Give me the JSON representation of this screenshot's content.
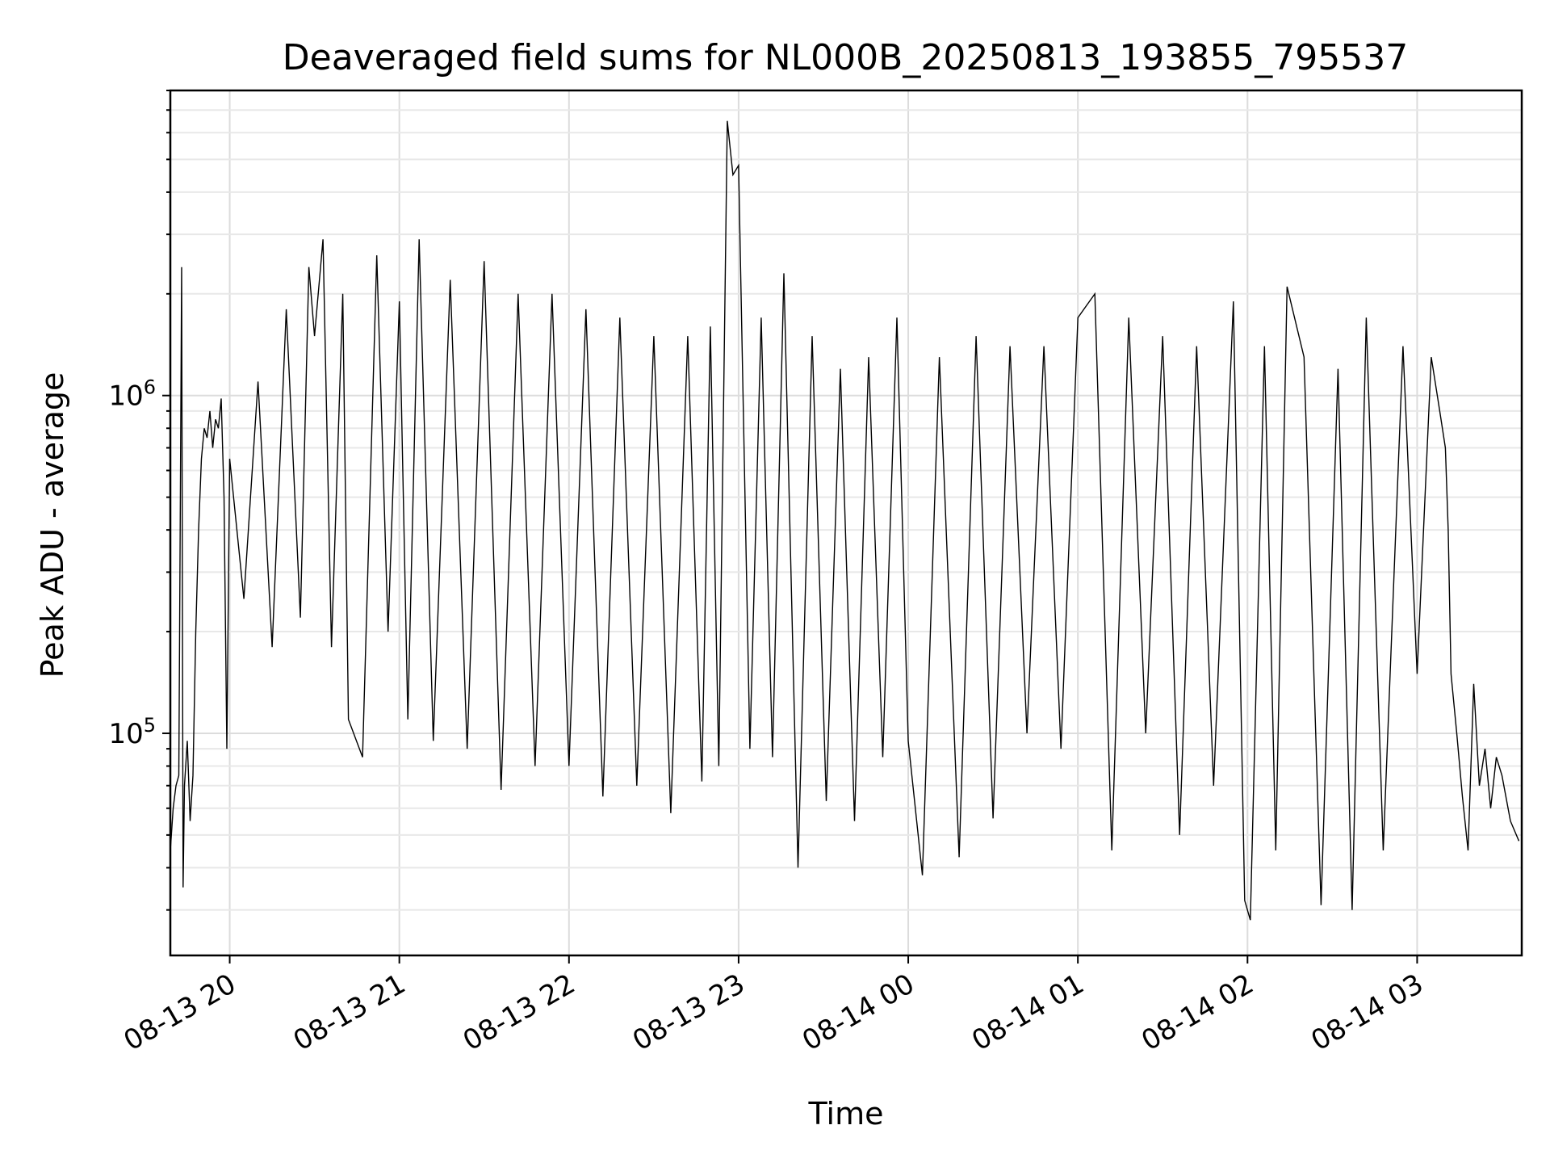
{
  "chart_data": {
    "type": "line",
    "title": "Deaveraged field sums for NL000B_20250813_193855_795537",
    "xlabel": "Time",
    "ylabel": "Peak ADU - average",
    "yscale": "log",
    "ylim": [
      22000,
      8000000
    ],
    "xlim": [
      "2025-08-13 19:39",
      "2025-08-14 03:37"
    ],
    "x_ticks": [
      "2025-08-13 20:00",
      "2025-08-13 21:00",
      "2025-08-13 22:00",
      "2025-08-13 23:00",
      "2025-08-14 00:00",
      "2025-08-14 01:00",
      "2025-08-14 02:00",
      "2025-08-14 03:00"
    ],
    "x_tick_labels": [
      "08-13 20",
      "08-13 21",
      "08-13 22",
      "08-13 23",
      "08-14 00",
      "08-14 01",
      "08-14 02",
      "08-14 03"
    ],
    "y_ticks": [
      {
        "base": "10",
        "exp": "5",
        "value": 100000
      },
      {
        "base": "10",
        "exp": "6",
        "value": 1000000
      }
    ],
    "grid": true,
    "line_color": "#000000",
    "series": [
      {
        "name": "",
        "points": [
          [
            "2025-08-13 19:39",
            45000
          ],
          [
            "2025-08-13 19:40",
            60000
          ],
          [
            "2025-08-13 19:41",
            70000
          ],
          [
            "2025-08-13 19:42",
            75000
          ],
          [
            "2025-08-13 19:43",
            2400000
          ],
          [
            "2025-08-13 19:43:30",
            35000
          ],
          [
            "2025-08-13 19:44",
            70000
          ],
          [
            "2025-08-13 19:45",
            95000
          ],
          [
            "2025-08-13 19:46",
            55000
          ],
          [
            "2025-08-13 19:47",
            75000
          ],
          [
            "2025-08-13 19:48",
            200000
          ],
          [
            "2025-08-13 19:49",
            400000
          ],
          [
            "2025-08-13 19:50",
            650000
          ],
          [
            "2025-08-13 19:51",
            800000
          ],
          [
            "2025-08-13 19:52",
            750000
          ],
          [
            "2025-08-13 19:53",
            900000
          ],
          [
            "2025-08-13 19:54",
            700000
          ],
          [
            "2025-08-13 19:55",
            850000
          ],
          [
            "2025-08-13 19:56",
            800000
          ],
          [
            "2025-08-13 19:57",
            980000
          ],
          [
            "2025-08-13 19:58",
            500000
          ],
          [
            "2025-08-13 19:59",
            90000
          ],
          [
            "2025-08-13 20:00",
            650000
          ],
          [
            "2025-08-13 20:05",
            250000
          ],
          [
            "2025-08-13 20:10",
            1100000
          ],
          [
            "2025-08-13 20:15",
            180000
          ],
          [
            "2025-08-13 20:20",
            1800000
          ],
          [
            "2025-08-13 20:25",
            220000
          ],
          [
            "2025-08-13 20:28",
            2400000
          ],
          [
            "2025-08-13 20:30",
            1500000
          ],
          [
            "2025-08-13 20:33",
            2900000
          ],
          [
            "2025-08-13 20:36",
            180000
          ],
          [
            "2025-08-13 20:40",
            2000000
          ],
          [
            "2025-08-13 20:42",
            110000
          ],
          [
            "2025-08-13 20:47",
            85000
          ],
          [
            "2025-08-13 20:52",
            2600000
          ],
          [
            "2025-08-13 20:56",
            200000
          ],
          [
            "2025-08-13 21:00",
            1900000
          ],
          [
            "2025-08-13 21:03",
            110000
          ],
          [
            "2025-08-13 21:07",
            2900000
          ],
          [
            "2025-08-13 21:12",
            95000
          ],
          [
            "2025-08-13 21:18",
            2200000
          ],
          [
            "2025-08-13 21:24",
            90000
          ],
          [
            "2025-08-13 21:30",
            2500000
          ],
          [
            "2025-08-13 21:36",
            68000
          ],
          [
            "2025-08-13 21:42",
            2000000
          ],
          [
            "2025-08-13 21:48",
            80000
          ],
          [
            "2025-08-13 21:54",
            2000000
          ],
          [
            "2025-08-13 22:00",
            80000
          ],
          [
            "2025-08-13 22:06",
            1800000
          ],
          [
            "2025-08-13 22:12",
            65000
          ],
          [
            "2025-08-13 22:18",
            1700000
          ],
          [
            "2025-08-13 22:24",
            70000
          ],
          [
            "2025-08-13 22:30",
            1500000
          ],
          [
            "2025-08-13 22:36",
            58000
          ],
          [
            "2025-08-13 22:42",
            1500000
          ],
          [
            "2025-08-13 22:47",
            72000
          ],
          [
            "2025-08-13 22:50",
            1600000
          ],
          [
            "2025-08-13 22:53",
            80000
          ],
          [
            "2025-08-13 22:56",
            6500000
          ],
          [
            "2025-08-13 22:58",
            4500000
          ],
          [
            "2025-08-13 23:00",
            4800000
          ],
          [
            "2025-08-13 23:04",
            90000
          ],
          [
            "2025-08-13 23:08",
            1700000
          ],
          [
            "2025-08-13 23:12",
            85000
          ],
          [
            "2025-08-13 23:16",
            2300000
          ],
          [
            "2025-08-13 23:21",
            40000
          ],
          [
            "2025-08-13 23:26",
            1500000
          ],
          [
            "2025-08-13 23:31",
            63000
          ],
          [
            "2025-08-13 23:36",
            1200000
          ],
          [
            "2025-08-13 23:41",
            55000
          ],
          [
            "2025-08-13 23:46",
            1300000
          ],
          [
            "2025-08-13 23:51",
            85000
          ],
          [
            "2025-08-13 23:56",
            1700000
          ],
          [
            "2025-08-14 00:00",
            95000
          ],
          [
            "2025-08-14 00:05",
            38000
          ],
          [
            "2025-08-14 00:11",
            1300000
          ],
          [
            "2025-08-14 00:18",
            43000
          ],
          [
            "2025-08-14 00:24",
            1500000
          ],
          [
            "2025-08-14 00:30",
            56000
          ],
          [
            "2025-08-14 00:36",
            1400000
          ],
          [
            "2025-08-14 00:42",
            100000
          ],
          [
            "2025-08-14 00:48",
            1400000
          ],
          [
            "2025-08-14 00:54",
            90000
          ],
          [
            "2025-08-14 01:00",
            1700000
          ],
          [
            "2025-08-14 01:06",
            2000000
          ],
          [
            "2025-08-14 01:12",
            45000
          ],
          [
            "2025-08-14 01:18",
            1700000
          ],
          [
            "2025-08-14 01:24",
            100000
          ],
          [
            "2025-08-14 01:30",
            1500000
          ],
          [
            "2025-08-14 01:36",
            50000
          ],
          [
            "2025-08-14 01:42",
            1400000
          ],
          [
            "2025-08-14 01:48",
            70000
          ],
          [
            "2025-08-14 01:55",
            1900000
          ],
          [
            "2025-08-14 01:59",
            32000
          ],
          [
            "2025-08-14 02:01",
            28000
          ],
          [
            "2025-08-14 02:06",
            1400000
          ],
          [
            "2025-08-14 02:10",
            45000
          ],
          [
            "2025-08-14 02:14",
            2100000
          ],
          [
            "2025-08-14 02:20",
            1300000
          ],
          [
            "2025-08-14 02:26",
            31000
          ],
          [
            "2025-08-14 02:32",
            1200000
          ],
          [
            "2025-08-14 02:37",
            30000
          ],
          [
            "2025-08-14 02:42",
            1700000
          ],
          [
            "2025-08-14 02:48",
            45000
          ],
          [
            "2025-08-14 02:55",
            1400000
          ],
          [
            "2025-08-14 03:00",
            150000
          ],
          [
            "2025-08-14 03:05",
            1300000
          ],
          [
            "2025-08-14 03:08",
            900000
          ],
          [
            "2025-08-14 03:10",
            700000
          ],
          [
            "2025-08-14 03:11",
            400000
          ],
          [
            "2025-08-14 03:12",
            150000
          ],
          [
            "2025-08-14 03:14",
            100000
          ],
          [
            "2025-08-14 03:16",
            65000
          ],
          [
            "2025-08-14 03:18",
            45000
          ],
          [
            "2025-08-14 03:20",
            140000
          ],
          [
            "2025-08-14 03:22",
            70000
          ],
          [
            "2025-08-14 03:24",
            90000
          ],
          [
            "2025-08-14 03:26",
            60000
          ],
          [
            "2025-08-14 03:28",
            85000
          ],
          [
            "2025-08-14 03:30",
            75000
          ],
          [
            "2025-08-14 03:33",
            55000
          ],
          [
            "2025-08-14 03:36",
            48000
          ]
        ]
      }
    ]
  }
}
